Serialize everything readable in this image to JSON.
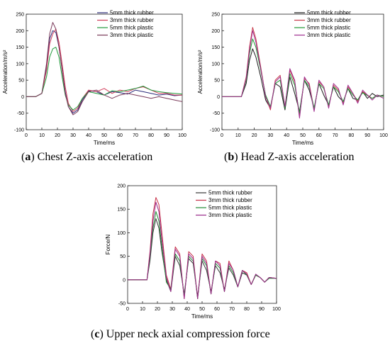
{
  "captions": [
    {
      "letter": "a",
      "text": " Chest Z-axis acceleration"
    },
    {
      "letter": "b",
      "text": " Head Z-axis acceleration"
    },
    {
      "letter": "c",
      "text": " Upper neck axial compression force"
    }
  ],
  "chart_data": [
    {
      "type": "line",
      "title": "",
      "xlabel": "Time/ms",
      "ylabel": "Acceleration/m/s²",
      "xlim": [
        0,
        100
      ],
      "ylim": [
        -100,
        250
      ],
      "xticks": [
        0,
        10,
        20,
        30,
        40,
        50,
        60,
        70,
        80,
        90,
        100
      ],
      "yticks": [
        -100,
        -50,
        0,
        50,
        100,
        150,
        200,
        250
      ],
      "legend_position": "top-right",
      "series": [
        {
          "name": "5mm thick rubber",
          "color": "#2b2b7a",
          "x": [
            0,
            6,
            10,
            13,
            15,
            17,
            19,
            21,
            23,
            25,
            27,
            30,
            33,
            36,
            40,
            45,
            50,
            55,
            60,
            65,
            70,
            75,
            80,
            85,
            90,
            95,
            100
          ],
          "y": [
            0,
            0,
            10,
            90,
            175,
            200,
            195,
            150,
            85,
            15,
            -30,
            -50,
            -40,
            -10,
            18,
            15,
            5,
            15,
            12,
            8,
            20,
            15,
            10,
            5,
            8,
            3,
            5
          ]
        },
        {
          "name": "3mm thick rubber",
          "color": "#d23c5a",
          "x": [
            0,
            6,
            10,
            13,
            15,
            17,
            19,
            21,
            23,
            25,
            27,
            30,
            33,
            36,
            40,
            45,
            50,
            55,
            60,
            65,
            70,
            75,
            80,
            85,
            90,
            95,
            100
          ],
          "y": [
            0,
            0,
            10,
            80,
            160,
            190,
            205,
            165,
            100,
            30,
            -20,
            -45,
            -35,
            -5,
            20,
            15,
            25,
            10,
            20,
            15,
            25,
            30,
            20,
            10,
            10,
            5,
            5
          ]
        },
        {
          "name": "5mm thick plastic",
          "color": "#1f9a3a",
          "x": [
            0,
            6,
            10,
            13,
            15,
            17,
            19,
            21,
            23,
            25,
            27,
            30,
            33,
            36,
            40,
            45,
            50,
            55,
            60,
            65,
            70,
            75,
            80,
            85,
            90,
            95,
            100
          ],
          "y": [
            0,
            0,
            10,
            60,
            120,
            145,
            150,
            120,
            60,
            5,
            -25,
            -40,
            -30,
            -5,
            15,
            10,
            5,
            18,
            15,
            20,
            25,
            32,
            20,
            15,
            12,
            10,
            8
          ]
        },
        {
          "name": "3mm thick plastic",
          "color": "#7a3a5a",
          "x": [
            0,
            6,
            10,
            13,
            15,
            17,
            19,
            21,
            23,
            25,
            27,
            30,
            33,
            36,
            40,
            45,
            50,
            55,
            60,
            65,
            70,
            75,
            80,
            85,
            90,
            95,
            100
          ],
          "y": [
            0,
            0,
            10,
            100,
            190,
            225,
            205,
            150,
            80,
            10,
            -30,
            -55,
            -45,
            -15,
            15,
            20,
            5,
            -5,
            5,
            10,
            5,
            0,
            -5,
            0,
            -5,
            -10,
            -15
          ]
        }
      ]
    },
    {
      "type": "line",
      "title": "",
      "xlabel": "Time/ms",
      "ylabel": "Acceleration/m/s²",
      "xlim": [
        0,
        100
      ],
      "ylim": [
        -100,
        250
      ],
      "xticks": [
        0,
        10,
        20,
        30,
        40,
        50,
        60,
        70,
        80,
        90,
        100
      ],
      "yticks": [
        -100,
        -50,
        0,
        50,
        100,
        150,
        200,
        250
      ],
      "legend_position": "top-right",
      "series": [
        {
          "name": "5mm thick rubber",
          "color": "#1a1a1a",
          "x": [
            0,
            12,
            15,
            17,
            19,
            21,
            24,
            27,
            30,
            33,
            36,
            39,
            42,
            45,
            48,
            51,
            54,
            57,
            60,
            63,
            66,
            69,
            72,
            75,
            78,
            81,
            84,
            87,
            90,
            93,
            96,
            100
          ],
          "y": [
            0,
            0,
            40,
            110,
            145,
            120,
            60,
            -10,
            -35,
            40,
            30,
            -40,
            60,
            10,
            -45,
            50,
            20,
            -35,
            40,
            5,
            -25,
            30,
            0,
            -15,
            25,
            -5,
            -10,
            15,
            -5,
            10,
            0,
            5
          ]
        },
        {
          "name": "3mm thick rubber",
          "color": "#c83a4a",
          "x": [
            0,
            12,
            15,
            17,
            19,
            21,
            24,
            27,
            30,
            33,
            36,
            39,
            42,
            45,
            48,
            51,
            54,
            57,
            60,
            63,
            66,
            69,
            72,
            75,
            78,
            81,
            84,
            87,
            90,
            93,
            96,
            100
          ],
          "y": [
            0,
            0,
            60,
            150,
            210,
            175,
            90,
            0,
            -40,
            50,
            65,
            -30,
            80,
            45,
            -60,
            55,
            40,
            -40,
            45,
            30,
            -30,
            35,
            20,
            -20,
            30,
            10,
            -15,
            15,
            5,
            -5,
            5,
            0
          ]
        },
        {
          "name": "5mm thick plastic",
          "color": "#1e9a32",
          "x": [
            0,
            12,
            15,
            17,
            19,
            21,
            24,
            27,
            30,
            33,
            36,
            39,
            42,
            45,
            48,
            51,
            54,
            57,
            60,
            63,
            66,
            69,
            72,
            75,
            78,
            81,
            84,
            87,
            90,
            93,
            96,
            100
          ],
          "y": [
            0,
            0,
            50,
            130,
            175,
            150,
            80,
            5,
            -30,
            40,
            50,
            -35,
            70,
            35,
            -50,
            50,
            30,
            -35,
            40,
            25,
            -25,
            30,
            15,
            -15,
            25,
            5,
            -10,
            12,
            3,
            -5,
            5,
            0
          ]
        },
        {
          "name": "3mm thick plastic",
          "color": "#a03090",
          "x": [
            0,
            12,
            15,
            17,
            19,
            21,
            24,
            27,
            30,
            33,
            36,
            39,
            42,
            45,
            48,
            51,
            54,
            57,
            60,
            63,
            66,
            69,
            72,
            75,
            78,
            81,
            84,
            87,
            90,
            93,
            96,
            100
          ],
          "y": [
            0,
            0,
            55,
            140,
            200,
            165,
            85,
            0,
            -35,
            45,
            60,
            -30,
            85,
            50,
            -65,
            60,
            35,
            -45,
            50,
            30,
            -35,
            40,
            25,
            -25,
            35,
            10,
            -20,
            20,
            5,
            -10,
            5,
            -5
          ]
        }
      ]
    },
    {
      "type": "line",
      "title": "",
      "xlabel": "Time/ms",
      "ylabel": "Force/N",
      "xlim": [
        0,
        100
      ],
      "ylim": [
        -50,
        200
      ],
      "xticks": [
        0,
        10,
        20,
        30,
        40,
        50,
        60,
        70,
        80,
        90,
        100
      ],
      "yticks": [
        -50,
        0,
        50,
        100,
        150,
        200
      ],
      "legend_position": "top-right",
      "series": [
        {
          "name": "5mm thick rubber",
          "color": "#3a3a3a",
          "x": [
            0,
            13,
            15,
            17,
            19,
            21,
            23,
            26,
            29,
            32,
            35,
            38,
            41,
            44,
            47,
            50,
            53,
            56,
            59,
            62,
            65,
            68,
            71,
            74,
            77,
            80,
            83,
            86,
            89,
            92,
            95,
            100
          ],
          "y": [
            0,
            0,
            40,
            100,
            130,
            110,
            60,
            0,
            -25,
            50,
            30,
            -30,
            45,
            35,
            -35,
            40,
            20,
            -25,
            30,
            15,
            -20,
            25,
            10,
            -15,
            15,
            10,
            -10,
            10,
            5,
            -5,
            5,
            3
          ]
        },
        {
          "name": "3mm thick rubber",
          "color": "#c8324a",
          "x": [
            0,
            13,
            15,
            17,
            19,
            21,
            23,
            26,
            29,
            32,
            35,
            38,
            41,
            44,
            47,
            50,
            53,
            56,
            59,
            62,
            65,
            68,
            71,
            74,
            77,
            80,
            83,
            86,
            89,
            92,
            95,
            100
          ],
          "y": [
            0,
            0,
            60,
            140,
            175,
            160,
            100,
            10,
            -20,
            70,
            55,
            -40,
            60,
            50,
            -40,
            55,
            40,
            -30,
            40,
            35,
            -25,
            40,
            20,
            -15,
            20,
            15,
            -10,
            10,
            5,
            -5,
            5,
            3
          ]
        },
        {
          "name": "5mm thick plastic",
          "color": "#1e8a32",
          "x": [
            0,
            13,
            15,
            17,
            19,
            21,
            23,
            26,
            29,
            32,
            35,
            38,
            41,
            44,
            47,
            50,
            53,
            56,
            59,
            62,
            65,
            68,
            71,
            74,
            77,
            80,
            83,
            86,
            89,
            92,
            95,
            100
          ],
          "y": [
            0,
            0,
            50,
            110,
            145,
            125,
            70,
            -5,
            -20,
            55,
            40,
            -35,
            50,
            40,
            -40,
            45,
            30,
            -30,
            35,
            25,
            -25,
            30,
            15,
            -15,
            20,
            10,
            -10,
            10,
            5,
            -5,
            3,
            3
          ]
        },
        {
          "name": "3mm thick plastic",
          "color": "#9a2a8a",
          "x": [
            0,
            13,
            15,
            17,
            19,
            21,
            23,
            26,
            29,
            32,
            35,
            38,
            41,
            44,
            47,
            50,
            53,
            56,
            59,
            62,
            65,
            68,
            71,
            74,
            77,
            80,
            83,
            86,
            89,
            92,
            95,
            100
          ],
          "y": [
            0,
            0,
            55,
            125,
            165,
            145,
            85,
            5,
            -25,
            65,
            50,
            -40,
            55,
            45,
            -40,
            50,
            35,
            -30,
            40,
            30,
            -25,
            35,
            20,
            -15,
            20,
            12,
            -10,
            12,
            5,
            -5,
            5,
            3
          ]
        }
      ]
    }
  ]
}
